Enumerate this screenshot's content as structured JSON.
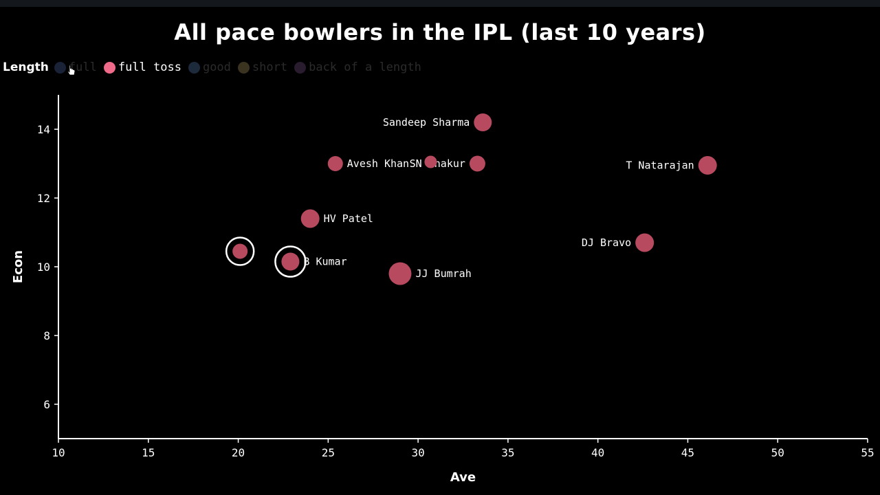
{
  "title": "All pace bowlers in the IPL (last 10 years)",
  "legend": {
    "title": "Length",
    "items": [
      {
        "label": "full",
        "color": "#1a2238",
        "active": false
      },
      {
        "label": "full toss",
        "color": "#f06a8a",
        "active": true
      },
      {
        "label": "good",
        "color": "#1d2a3c",
        "active": false
      },
      {
        "label": "short",
        "color": "#3a3320",
        "active": false
      },
      {
        "label": "back of a length",
        "color": "#281c2e",
        "active": false
      }
    ]
  },
  "colors": {
    "point": "#b84a60",
    "highlight_ring": "#ffffff",
    "axis": "#ffffff"
  },
  "chart_data": {
    "type": "scatter",
    "xlabel": "Ave",
    "ylabel": "Econ",
    "xlim": [
      10,
      55
    ],
    "ylim": [
      5,
      15
    ],
    "xticks": [
      10,
      15,
      20,
      25,
      30,
      35,
      40,
      45,
      50,
      55
    ],
    "yticks": [
      6,
      8,
      10,
      12,
      14
    ],
    "grid": false,
    "legend_position": "top-left",
    "points": [
      {
        "label": "Sandeep Sharma",
        "x": 33.6,
        "y": 14.2,
        "size": 13,
        "label_side": "left"
      },
      {
        "label": "Avesh Khan",
        "x": 25.4,
        "y": 13.0,
        "size": 11,
        "label_side": "right"
      },
      {
        "label": "SN Thakur",
        "x": 33.3,
        "y": 13.0,
        "size": 11.5,
        "label_side": "left"
      },
      {
        "label": "",
        "x": 30.7,
        "y": 13.05,
        "size": 9,
        "label_side": "none"
      },
      {
        "label": "T Natarajan",
        "x": 46.1,
        "y": 12.95,
        "size": 13.5,
        "label_side": "left"
      },
      {
        "label": "HV Patel",
        "x": 24.0,
        "y": 11.4,
        "size": 13.5,
        "label_side": "right"
      },
      {
        "label": "DJ Bravo",
        "x": 42.6,
        "y": 10.7,
        "size": 13.5,
        "label_side": "left"
      },
      {
        "label": "",
        "x": 20.1,
        "y": 10.45,
        "size": 11,
        "label_side": "none",
        "highlight": true
      },
      {
        "label": "B Kumar",
        "x": 22.9,
        "y": 10.15,
        "size": 13,
        "label_side": "right",
        "highlight": true
      },
      {
        "label": "JJ Bumrah",
        "x": 29.0,
        "y": 9.8,
        "size": 16.5,
        "label_side": "right"
      }
    ]
  }
}
